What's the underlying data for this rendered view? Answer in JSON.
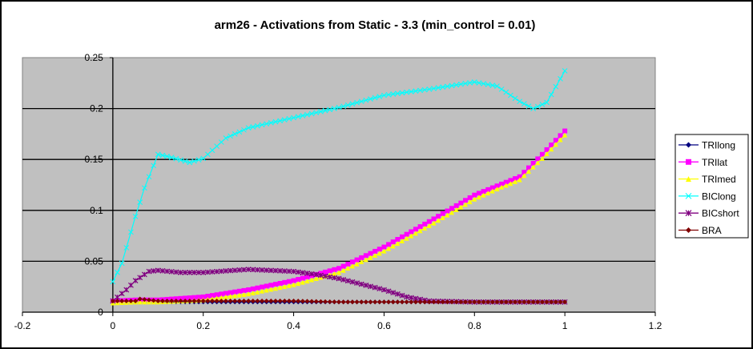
{
  "chart_data": {
    "type": "line",
    "title": "arm26 - Activations from Static - 3.3 (min_control = 0.01)",
    "xlabel": "",
    "ylabel": "",
    "xlim": [
      -0.2,
      1.2
    ],
    "ylim": [
      0,
      0.25
    ],
    "x_ticks": [
      "-0.2",
      "0",
      "0.2",
      "0.4",
      "0.6",
      "0.8",
      "1",
      "1.2"
    ],
    "y_ticks": [
      "0",
      "0.05",
      "0.1",
      "0.15",
      "0.2",
      "0.25"
    ],
    "grid": "horizontal major gridlines",
    "plot_background": "#c0c0c0",
    "legend_position": "right",
    "series": [
      {
        "name": "TRIlong",
        "color": "#000080",
        "marker": "diamond",
        "x": [
          0,
          0.1,
          0.2,
          0.3,
          0.4,
          0.5,
          0.6,
          0.7,
          0.8,
          0.9,
          1.0
        ],
        "values": [
          0.01,
          0.01,
          0.01,
          0.01,
          0.01,
          0.01,
          0.01,
          0.01,
          0.01,
          0.01,
          0.01
        ]
      },
      {
        "name": "TRIlat",
        "color": "#ff00ff",
        "marker": "square",
        "x": [
          0,
          0.05,
          0.1,
          0.2,
          0.3,
          0.4,
          0.5,
          0.6,
          0.7,
          0.8,
          0.85,
          0.9,
          0.95,
          1.0
        ],
        "values": [
          0.011,
          0.012,
          0.012,
          0.015,
          0.022,
          0.031,
          0.043,
          0.064,
          0.089,
          0.115,
          0.124,
          0.133,
          0.155,
          0.178
        ]
      },
      {
        "name": "TRImed",
        "color": "#ffff00",
        "marker": "triangle",
        "x": [
          0,
          0.05,
          0.1,
          0.2,
          0.3,
          0.4,
          0.5,
          0.6,
          0.7,
          0.8,
          0.85,
          0.9,
          0.95,
          1.0
        ],
        "values": [
          0.009,
          0.01,
          0.01,
          0.012,
          0.018,
          0.027,
          0.039,
          0.06,
          0.085,
          0.111,
          0.121,
          0.13,
          0.151,
          0.174
        ]
      },
      {
        "name": "BIClong",
        "color": "#00ffff",
        "marker": "x",
        "x": [
          0,
          0.02,
          0.05,
          0.07,
          0.1,
          0.13,
          0.17,
          0.2,
          0.25,
          0.3,
          0.4,
          0.5,
          0.6,
          0.7,
          0.8,
          0.85,
          0.9,
          0.93,
          0.96,
          1.0
        ],
        "values": [
          0.03,
          0.048,
          0.094,
          0.122,
          0.155,
          0.152,
          0.147,
          0.151,
          0.171,
          0.181,
          0.191,
          0.201,
          0.213,
          0.219,
          0.226,
          0.222,
          0.207,
          0.2,
          0.206,
          0.237
        ]
      },
      {
        "name": "BICshort",
        "color": "#800080",
        "marker": "star",
        "x": [
          0,
          0.03,
          0.05,
          0.08,
          0.1,
          0.15,
          0.2,
          0.3,
          0.4,
          0.45,
          0.5,
          0.6,
          0.65,
          0.7,
          0.8,
          0.9,
          1.0
        ],
        "values": [
          0.011,
          0.022,
          0.031,
          0.04,
          0.041,
          0.039,
          0.039,
          0.042,
          0.04,
          0.037,
          0.033,
          0.022,
          0.015,
          0.011,
          0.01,
          0.01,
          0.01
        ]
      },
      {
        "name": "BRA",
        "color": "#800000",
        "marker": "diamond",
        "x": [
          0,
          0.05,
          0.06,
          0.1,
          0.2,
          0.3,
          0.4,
          0.5,
          0.6,
          0.7,
          0.8,
          0.9,
          1.0
        ],
        "values": [
          0.011,
          0.011,
          0.013,
          0.011,
          0.011,
          0.011,
          0.011,
          0.01,
          0.01,
          0.01,
          0.01,
          0.01,
          0.01
        ]
      }
    ]
  }
}
